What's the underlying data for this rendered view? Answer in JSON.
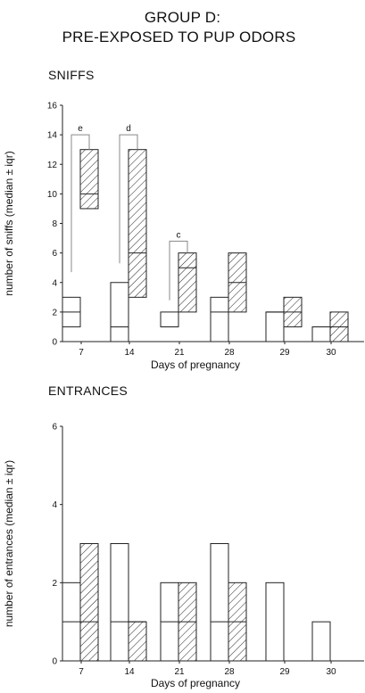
{
  "page": {
    "title_line1": "GROUP D:",
    "title_line2": "PRE-EXPOSED TO PUP ODORS"
  },
  "chart_data": [
    {
      "type": "box",
      "title": "SNIFFS",
      "xlabel": "Days of pregnancy",
      "ylabel": "number of sniffs (median ± iqr)",
      "ylim": [
        0,
        16
      ],
      "yticks": [
        0,
        2,
        4,
        6,
        8,
        10,
        12,
        14,
        16
      ],
      "categories": [
        "7",
        "14",
        "21",
        "28",
        "29",
        "30"
      ],
      "series": [
        {
          "style": "open",
          "values": [
            {
              "q1": 1,
              "median": 2,
              "q3": 3
            },
            {
              "q1": 0,
              "median": 1,
              "q3": 4
            },
            {
              "q1": 1,
              "median": 1,
              "q3": 2
            },
            {
              "q1": 0,
              "median": 2,
              "q3": 3
            },
            {
              "q1": 0,
              "median": 2,
              "q3": 2
            },
            {
              "q1": 0,
              "median": 1,
              "q3": 1
            }
          ]
        },
        {
          "style": "hatched",
          "values": [
            {
              "q1": 9,
              "median": 10,
              "q3": 13
            },
            {
              "q1": 3,
              "median": 6,
              "q3": 13
            },
            {
              "q1": 2,
              "median": 5,
              "q3": 6
            },
            {
              "q1": 2,
              "median": 4,
              "q3": 6
            },
            {
              "q1": 1,
              "median": 2,
              "q3": 3
            },
            {
              "q1": 0,
              "median": 1,
              "q3": 2
            }
          ]
        }
      ],
      "annotations": [
        {
          "text": "e",
          "category": "7",
          "y_low_open": 4.7,
          "y_bracket": 14
        },
        {
          "text": "d",
          "category": "14",
          "y_low_open": 5.3,
          "y_bracket": 14
        },
        {
          "text": "c",
          "category": "21",
          "y_low_open": 2.8,
          "y_bracket": 6.8
        }
      ]
    },
    {
      "type": "box",
      "title": "ENTRANCES",
      "xlabel": "Days of pregnancy",
      "ylabel": "number of entrances (median ± iqr)",
      "ylim": [
        0,
        6
      ],
      "yticks": [
        0,
        2,
        4,
        6
      ],
      "categories": [
        "7",
        "14",
        "21",
        "28",
        "29",
        "30"
      ],
      "series": [
        {
          "style": "open",
          "values": [
            {
              "q1": 0,
              "median": 1,
              "q3": 2
            },
            {
              "q1": 0,
              "median": 1,
              "q3": 3
            },
            {
              "q1": 0,
              "median": 1,
              "q3": 2
            },
            {
              "q1": 0,
              "median": 1,
              "q3": 3
            },
            {
              "q1": 0,
              "median": 0,
              "q3": 2
            },
            {
              "q1": 0,
              "median": 0,
              "q3": 1
            }
          ]
        },
        {
          "style": "hatched",
          "values": [
            {
              "q1": 0,
              "median": 1,
              "q3": 3
            },
            {
              "q1": 0,
              "median": 1,
              "q3": 1
            },
            {
              "q1": 0,
              "median": 1,
              "q3": 2
            },
            {
              "q1": 0,
              "median": 1,
              "q3": 2
            },
            {
              "q1": 0,
              "median": 0,
              "q3": 0
            },
            {
              "q1": 0,
              "median": 0,
              "q3": 0
            }
          ]
        }
      ]
    }
  ]
}
